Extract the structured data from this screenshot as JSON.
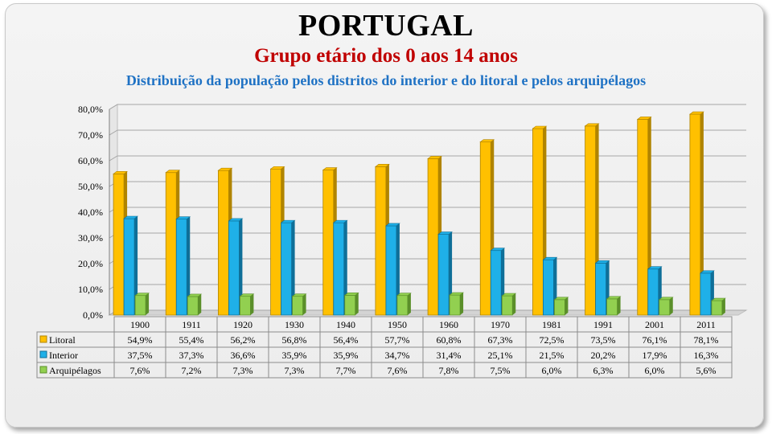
{
  "header": {
    "title": "PORTUGAL",
    "subtitle": "Grupo etário dos 0 aos 14 anos",
    "description": "Distribuição da população pelos distritos do interior e do litoral e pelos arquipélagos"
  },
  "colors": {
    "litoral": "#ffc000",
    "interior": "#1fb0e8",
    "arquipelagos": "#92d050",
    "title": "#000000",
    "subtitle": "#c00000",
    "description": "#1f72c4"
  },
  "chart_data": {
    "type": "bar",
    "title": "",
    "categories": [
      "1900",
      "1911",
      "1920",
      "1930",
      "1940",
      "1950",
      "1960",
      "1970",
      "1981",
      "1991",
      "2001",
      "2011"
    ],
    "series": [
      {
        "name": "Litoral",
        "values": [
          54.9,
          55.4,
          56.2,
          56.8,
          56.4,
          57.7,
          60.8,
          67.3,
          72.5,
          73.5,
          76.1,
          78.1
        ],
        "labels": [
          "54,9%",
          "55,4%",
          "56,2%",
          "56,8%",
          "56,4%",
          "57,7%",
          "60,8%",
          "67,3%",
          "72,5%",
          "73,5%",
          "76,1%",
          "78,1%"
        ]
      },
      {
        "name": "Interior",
        "values": [
          37.5,
          37.3,
          36.6,
          35.9,
          35.9,
          34.7,
          31.4,
          25.1,
          21.5,
          20.2,
          17.9,
          16.3
        ],
        "labels": [
          "37,5%",
          "37,3%",
          "36,6%",
          "35,9%",
          "35,9%",
          "34,7%",
          "31,4%",
          "25,1%",
          "21,5%",
          "20,2%",
          "17,9%",
          "16,3%"
        ]
      },
      {
        "name": "Arquipélagos",
        "values": [
          7.6,
          7.2,
          7.3,
          7.3,
          7.7,
          7.6,
          7.8,
          7.5,
          6.0,
          6.3,
          6.0,
          5.6
        ],
        "labels": [
          "7,6%",
          "7,2%",
          "7,3%",
          "7,3%",
          "7,7%",
          "7,6%",
          "7,8%",
          "7,5%",
          "6,0%",
          "6,3%",
          "6,0%",
          "5,6%"
        ]
      }
    ],
    "yticks": [
      "0,0%",
      "10,0%",
      "20,0%",
      "30,0%",
      "40,0%",
      "50,0%",
      "60,0%",
      "70,0%",
      "80,0%"
    ],
    "ylim": [
      0,
      80
    ],
    "grid": true,
    "legend": "data-table-left"
  }
}
